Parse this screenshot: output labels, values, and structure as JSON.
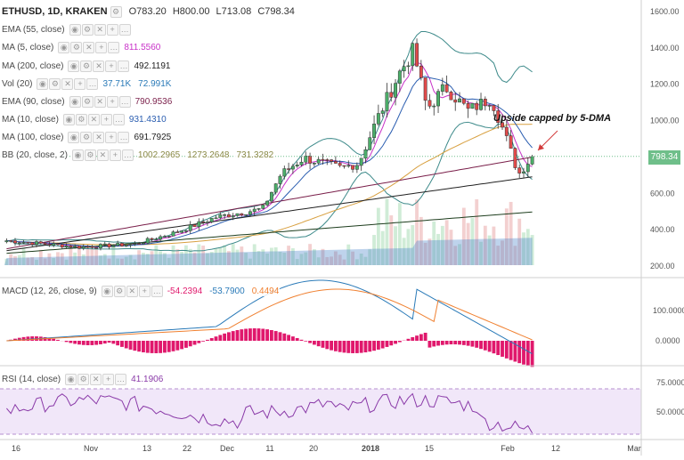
{
  "header": {
    "symbol": "ETHUSD, 1D, KRAKEN",
    "open": "O783.20",
    "high": "H800.00",
    "low": "L713.08",
    "close": "C798.34"
  },
  "studies": [
    {
      "id": "ema55",
      "label": "EMA (55, close)",
      "values": [],
      "color": "#888888"
    },
    {
      "id": "ma5",
      "label": "MA (5, close)",
      "values": [
        "811.5560"
      ],
      "color": "#c832c8"
    },
    {
      "id": "ma200",
      "label": "MA (200, close)",
      "values": [
        "492.1191"
      ],
      "color": "#222222"
    },
    {
      "id": "vol",
      "label": "Vol (20)",
      "values": [
        "37.71K",
        "72.991K"
      ],
      "color": "#2a7ab8"
    },
    {
      "id": "ema90",
      "label": "EMA (90, close)",
      "values": [
        "790.9536"
      ],
      "color": "#7a1f4a"
    },
    {
      "id": "ma10",
      "label": "MA (10, close)",
      "values": [
        "931.4310"
      ],
      "color": "#2a5db0"
    },
    {
      "id": "ma100",
      "label": "MA (100, close)",
      "values": [
        "691.7925"
      ],
      "color": "#222222"
    },
    {
      "id": "bb",
      "label": "BB (20, close, 2)",
      "values": [
        "1002.2965",
        "1273.2648",
        "731.3282"
      ],
      "color": "#888844"
    }
  ],
  "macd": {
    "label": "MACD (12, 26, close, 9)",
    "values": [
      "-54.2394",
      "-53.7900",
      "0.4494"
    ],
    "colors": [
      "#e0186c",
      "#2a7ab8",
      "#f08030"
    ]
  },
  "rsi": {
    "label": "RSI (14, close)",
    "values": [
      "41.1906"
    ],
    "colors": [
      "#8a3aa8"
    ]
  },
  "annotation": "Upside capped by 5-DMA",
  "last_price": "798.34",
  "price_axis": [
    "1600.00",
    "1400.00",
    "1200.00",
    "1000.00",
    "800.00",
    "600.00",
    "400.00",
    "200.00"
  ],
  "macd_axis": [
    "100.0000",
    "0.0000"
  ],
  "rsi_axis": [
    "75.0000",
    "50.0000"
  ],
  "time_axis": [
    "16",
    "Nov",
    "13",
    "22",
    "Dec",
    "11",
    "20",
    "2018",
    "15",
    "Feb",
    "12",
    "Mar"
  ],
  "colors": {
    "up": "#4caf6a",
    "down": "#e04a4a",
    "accent": "#6fbf8a"
  },
  "chart_data": {
    "type": "candlestick",
    "ylim": [
      150,
      1650
    ],
    "candles": [
      {
        "date": "2017-10-16",
        "close": 335
      },
      {
        "date": "2017-11-01",
        "close": 300
      },
      {
        "date": "2017-11-13",
        "close": 315
      },
      {
        "date": "2017-11-22",
        "close": 380
      },
      {
        "date": "2017-12-01",
        "close": 465
      },
      {
        "date": "2017-12-11",
        "close": 510
      },
      {
        "date": "2017-12-15",
        "close": 700
      },
      {
        "date": "2017-12-20",
        "close": 790
      },
      {
        "date": "2017-12-28",
        "close": 735
      },
      {
        "date": "2018-01-01",
        "close": 760
      },
      {
        "date": "2018-01-05",
        "close": 1000
      },
      {
        "date": "2018-01-10",
        "close": 1260
      },
      {
        "date": "2018-01-13",
        "close": 1380
      },
      {
        "date": "2018-01-16",
        "close": 1060
      },
      {
        "date": "2018-01-20",
        "close": 1180
      },
      {
        "date": "2018-01-25",
        "close": 1050
      },
      {
        "date": "2018-01-30",
        "close": 1120
      },
      {
        "date": "2018-02-02",
        "close": 920
      },
      {
        "date": "2018-02-05",
        "close": 700
      },
      {
        "date": "2018-02-08",
        "close": 798.34
      }
    ],
    "series": [
      {
        "name": "MA (5, close)",
        "last": 811.556
      },
      {
        "name": "MA (200, close)",
        "last": 492.1191
      },
      {
        "name": "EMA (90, close)",
        "last": 790.9536
      },
      {
        "name": "MA (10, close)",
        "last": 931.431
      },
      {
        "name": "MA (100, close)",
        "last": 691.7925
      }
    ]
  }
}
